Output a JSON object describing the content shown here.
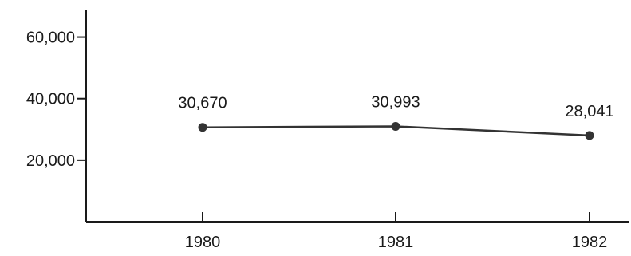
{
  "chart_data": {
    "type": "line",
    "categories": [
      "1980",
      "1981",
      "1982"
    ],
    "values": [
      30670,
      30993,
      28041
    ],
    "data_labels": [
      "30,670",
      "30,993",
      "28,041"
    ],
    "yticks": [
      20000,
      40000,
      60000
    ],
    "ytick_labels": [
      "20,000",
      "40,000",
      "60,000"
    ],
    "ylim": [
      0,
      70000
    ],
    "grid": false,
    "line_color": "#333333",
    "axis_color": "#1a1a1a"
  }
}
